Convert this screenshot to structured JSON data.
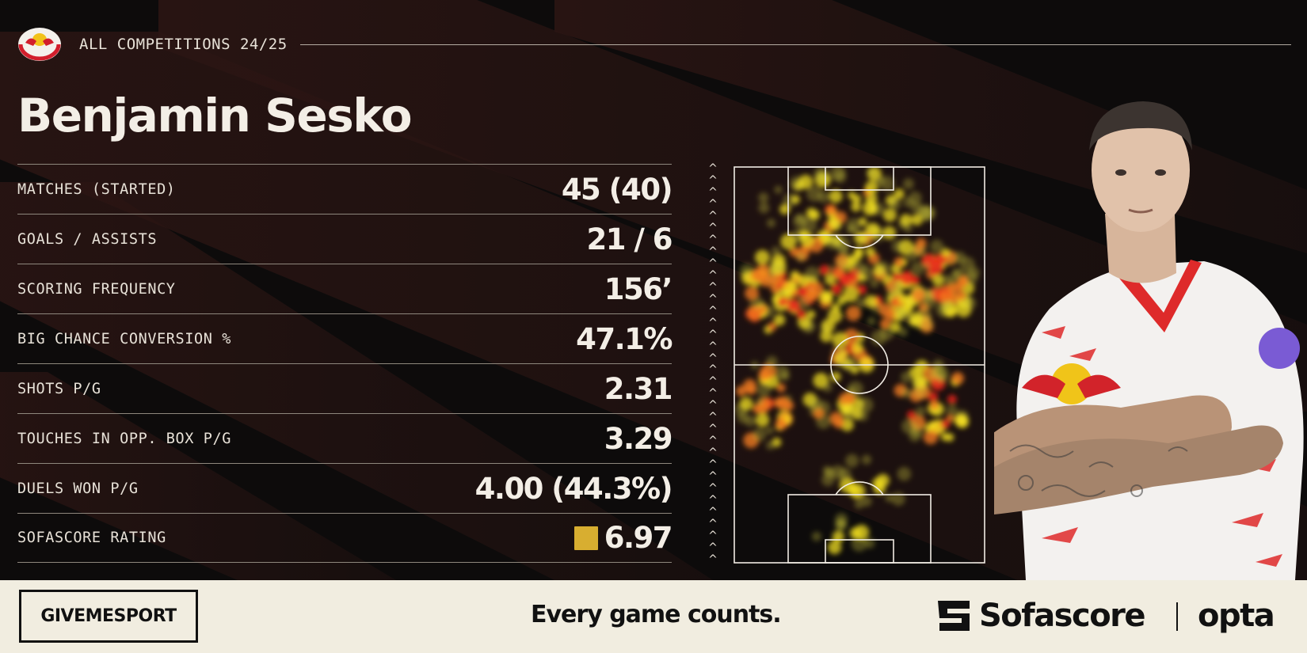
{
  "header": {
    "competition": "ALL COMPETITIONS 24/25",
    "club_logo": "rb-leipzig-crest-icon"
  },
  "player": {
    "name": "Benjamin Sesko"
  },
  "stats": [
    {
      "label": "MATCHES (STARTED)",
      "value": "45 (40)"
    },
    {
      "label": "GOALS / ASSISTS",
      "value": "21 / 6"
    },
    {
      "label": "SCORING FREQUENCY",
      "value": "156’"
    },
    {
      "label": "BIG CHANCE CONVERSION %",
      "value": "47.1%"
    },
    {
      "label": "SHOTS P/G",
      "value": "2.31"
    },
    {
      "label": "TOUCHES IN OPP. BOX P/G",
      "value": "3.29"
    },
    {
      "label": "DUELS WON P/G",
      "value": "4.00 (44.3%)"
    },
    {
      "label": "SOFASCORE RATING",
      "value": "6.97"
    }
  ],
  "rating_color": "#d8ae30",
  "heatmap": {
    "attack_direction": "up",
    "arrow_glyph": "^"
  },
  "footer": {
    "brand": "GIVEMESPORT",
    "tagline": "Every game counts.",
    "sofascore": "Sofascore",
    "opta": "opta"
  },
  "colors": {
    "background": "#0d0b0b",
    "stripe": "#2a1614",
    "footer_bg": "#f1ede0",
    "text_light": "#f3eee6",
    "heat_red": "#e8251a",
    "heat_yellow": "#f3e020"
  }
}
